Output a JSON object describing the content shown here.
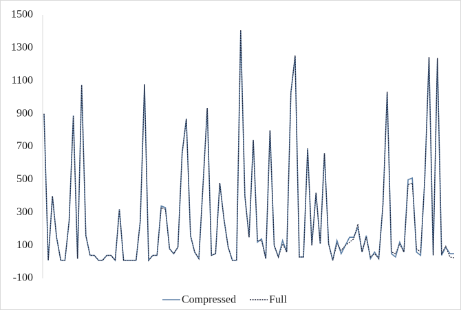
{
  "chart_data": {
    "type": "line",
    "ylim": [
      -100,
      1500
    ],
    "yticks": [
      -100,
      100,
      300,
      500,
      700,
      900,
      1100,
      1300,
      1500
    ],
    "grid": false,
    "legend": "bottom",
    "series": [
      {
        "name": "Compressed",
        "color": "#5b7fa6",
        "dash": "solid",
        "values": [
          900,
          10,
          400,
          150,
          10,
          10,
          250,
          890,
          20,
          1075,
          160,
          40,
          40,
          10,
          10,
          40,
          40,
          10,
          320,
          10,
          10,
          10,
          10,
          250,
          1080,
          10,
          40,
          40,
          340,
          330,
          80,
          50,
          90,
          660,
          870,
          160,
          60,
          20,
          470,
          935,
          40,
          50,
          480,
          260,
          90,
          10,
          10,
          1405,
          400,
          150,
          740,
          120,
          140,
          20,
          800,
          100,
          30,
          130,
          60,
          1030,
          1250,
          30,
          30,
          690,
          100,
          420,
          110,
          660,
          110,
          10,
          130,
          50,
          100,
          150,
          150,
          210,
          60,
          160,
          20,
          60,
          20,
          350,
          1030,
          50,
          30,
          120,
          60,
          500,
          510,
          60,
          40,
          510,
          1240,
          40,
          1235,
          40,
          90,
          50,
          50
        ]
      },
      {
        "name": "Full",
        "color": "#1c1f33",
        "dash": "dotted",
        "values": [
          900,
          10,
          400,
          150,
          10,
          10,
          250,
          885,
          20,
          1075,
          160,
          40,
          40,
          10,
          10,
          40,
          40,
          10,
          320,
          10,
          10,
          10,
          10,
          250,
          1080,
          10,
          40,
          40,
          330,
          320,
          80,
          50,
          90,
          660,
          870,
          160,
          60,
          20,
          470,
          935,
          40,
          50,
          480,
          260,
          90,
          10,
          10,
          1410,
          400,
          150,
          740,
          130,
          130,
          20,
          800,
          100,
          30,
          110,
          60,
          1030,
          1255,
          30,
          30,
          690,
          100,
          420,
          110,
          660,
          110,
          10,
          110,
          70,
          100,
          120,
          140,
          230,
          60,
          150,
          30,
          50,
          20,
          350,
          1035,
          60,
          50,
          110,
          60,
          470,
          480,
          80,
          60,
          510,
          1245,
          40,
          1240,
          50,
          95,
          30,
          25
        ]
      }
    ]
  }
}
